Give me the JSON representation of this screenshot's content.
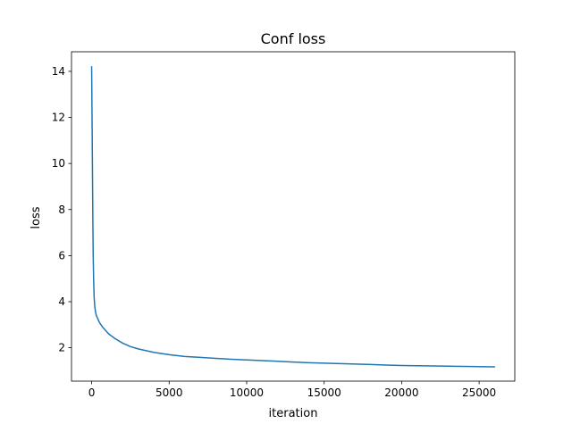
{
  "chart_data": {
    "type": "line",
    "title": "Conf loss",
    "xlabel": "iteration",
    "ylabel": "loss",
    "xlim": [
      -1300,
      27300
    ],
    "ylim": [
      0.55,
      14.85
    ],
    "xticks": [
      0,
      5000,
      10000,
      15000,
      20000,
      25000
    ],
    "xtick_labels": [
      "0",
      "5000",
      "10000",
      "15000",
      "20000",
      "25000"
    ],
    "yticks": [
      2,
      4,
      6,
      8,
      10,
      12,
      14
    ],
    "ytick_labels": [
      "2",
      "4",
      "6",
      "8",
      "10",
      "12",
      "14"
    ],
    "grid": false,
    "legend": "none",
    "series": [
      {
        "color": "#1f77b4",
        "x": [
          0,
          20,
          40,
          60,
          80,
          100,
          130,
          160,
          200,
          250,
          300,
          400,
          500,
          700,
          900,
          1100,
          1500,
          2000,
          2500,
          3000,
          4000,
          5000,
          6000,
          7000,
          8000,
          9000,
          10000,
          11000,
          12000,
          13000,
          14000,
          15000,
          16000,
          17000,
          18000,
          19000,
          20000,
          21000,
          22000,
          23000,
          24000,
          25000,
          26000
        ],
        "y": [
          14.2,
          12.5,
          10.8,
          9.0,
          7.4,
          6.0,
          4.9,
          4.2,
          3.8,
          3.55,
          3.4,
          3.25,
          3.1,
          2.9,
          2.75,
          2.6,
          2.4,
          2.2,
          2.05,
          1.95,
          1.8,
          1.7,
          1.62,
          1.58,
          1.54,
          1.5,
          1.47,
          1.44,
          1.41,
          1.38,
          1.35,
          1.33,
          1.31,
          1.29,
          1.27,
          1.25,
          1.23,
          1.22,
          1.21,
          1.2,
          1.19,
          1.18,
          1.17
        ]
      }
    ]
  }
}
